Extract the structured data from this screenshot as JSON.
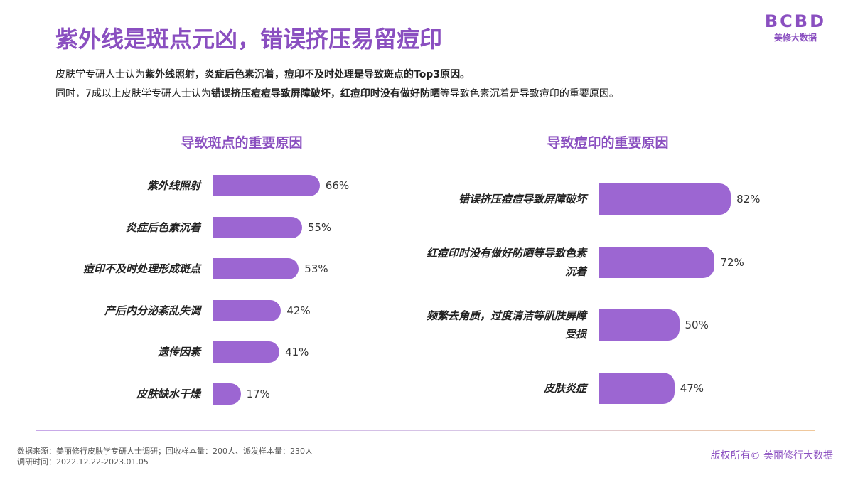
{
  "header": {
    "title": "紫外线是斑点元凶，错误挤压易留痘印",
    "logo": "BCBD",
    "logo_sub": "美修大数据",
    "description": [
      [
        {
          "text": "皮肤学专研人士认为",
          "bold": false
        },
        {
          "text": "紫外线照射，炎症后色素沉着，痘印不及时处理是导致斑点的Top3原因。",
          "bold": true
        }
      ],
      [
        {
          "text": "同时，7成以上皮肤学专研人士认为",
          "bold": false
        },
        {
          "text": "错误挤压痘痘导致屏障破坏，红痘印时没有做好防晒",
          "bold": true
        },
        {
          "text": "等导致色素沉着是导致痘印的重要原因。",
          "bold": false
        }
      ]
    ]
  },
  "chart_data": [
    {
      "type": "bar",
      "title": "导致斑点的重要原因",
      "color": "#9c66d2",
      "categories": [
        "紫外线照射",
        "炎症后色素沉着",
        "痘印不及时处理形成斑点",
        "产后内分泌紊乱失调",
        "遗传因素",
        "皮肤缺水干燥"
      ],
      "values": [
        66,
        55,
        53,
        42,
        41,
        17
      ],
      "value_labels": [
        "66%",
        "55%",
        "53%",
        "42%",
        "41%",
        "17%"
      ]
    },
    {
      "type": "bar",
      "title": "导致痘印的重要原因",
      "color": "#9c66d2",
      "categories": [
        "错误挤压痘痘导致屏障破坏",
        "红痘印时没有做好防晒等导致色素沉着",
        "频繁去角质，过度清洁等肌肤屏障受损",
        "皮肤炎症"
      ],
      "values": [
        82,
        72,
        50,
        47
      ],
      "value_labels": [
        "82%",
        "72%",
        "50%",
        "47%"
      ]
    }
  ],
  "footer": {
    "source": "数据来源：美丽修行皮肤学专研人士调研；回收样本量：200人、派发样本量：230人",
    "period": "调研时间：2022.12.22-2023.01.05",
    "copyright": "版权所有© 美丽修行大数据"
  }
}
